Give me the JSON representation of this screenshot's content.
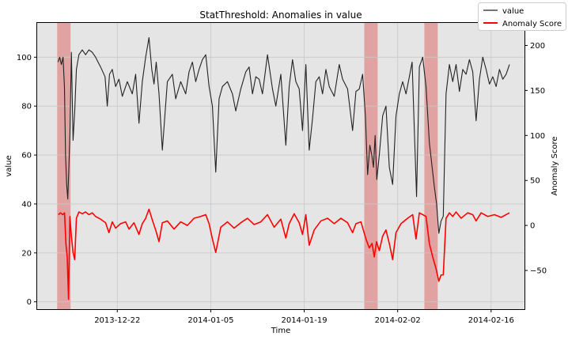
{
  "chart_data": {
    "type": "line",
    "title": "StatThreshold: Anomalies in value",
    "xlabel": "Time",
    "ylabel": "value",
    "ylabel_right": "Anomaly Score",
    "x_range": [
      "2013-12-10",
      "2014-02-21"
    ],
    "x_ticks": [
      "2013-12-22",
      "2014-01-05",
      "2014-01-19",
      "2014-02-02",
      "2014-02-16"
    ],
    "ylim": [
      -3,
      114
    ],
    "yticks": [
      0,
      20,
      40,
      60,
      80,
      100
    ],
    "ylim_right": [
      -93,
      225
    ],
    "yticks_right": [
      -50,
      0,
      50,
      100,
      150,
      200
    ],
    "grid": true,
    "legend_position": "top-right",
    "anomaly_color": "#d9534f",
    "anomaly_windows": [
      [
        "2013-12-13",
        "2013-12-15"
      ],
      [
        "2014-01-28",
        "2014-01-30"
      ],
      [
        "2014-02-06",
        "2014-02-08"
      ]
    ],
    "series": [
      {
        "name": "value",
        "color": "#222222",
        "axis": "left",
        "points": [
          [
            "2013-12-13",
            98
          ],
          [
            "2013-12-13",
            100
          ],
          [
            "2013-12-13",
            97
          ],
          [
            "2013-12-13",
            100
          ],
          [
            "2013-12-14",
            88
          ],
          [
            "2013-12-14",
            60
          ],
          [
            "2013-12-14",
            48
          ],
          [
            "2013-12-14",
            42
          ],
          [
            "2013-12-14",
            55
          ],
          [
            "2013-12-14",
            70
          ],
          [
            "2013-12-15",
            102
          ],
          [
            "2013-12-15",
            66
          ],
          [
            "2013-12-15",
            78
          ],
          [
            "2013-12-15",
            95
          ],
          [
            "2013-12-16",
            101
          ],
          [
            "2013-12-16",
            103
          ],
          [
            "2013-12-17",
            101
          ],
          [
            "2013-12-17",
            103
          ],
          [
            "2013-12-18",
            102
          ],
          [
            "2013-12-18",
            100
          ],
          [
            "2013-12-19",
            96
          ],
          [
            "2013-12-20",
            92
          ],
          [
            "2013-12-20",
            80
          ],
          [
            "2013-12-20",
            93
          ],
          [
            "2013-12-21",
            95
          ],
          [
            "2013-12-21",
            88
          ],
          [
            "2013-12-22",
            91
          ],
          [
            "2013-12-22",
            84
          ],
          [
            "2013-12-23",
            90
          ],
          [
            "2013-12-24",
            85
          ],
          [
            "2013-12-24",
            93
          ],
          [
            "2013-12-25",
            73
          ],
          [
            "2013-12-25",
            90
          ],
          [
            "2013-12-26",
            100
          ],
          [
            "2013-12-26",
            108
          ],
          [
            "2013-12-27",
            95
          ],
          [
            "2013-12-27",
            89
          ],
          [
            "2013-12-27",
            98
          ],
          [
            "2013-12-28",
            85
          ],
          [
            "2013-12-28",
            62
          ],
          [
            "2013-12-29",
            90
          ],
          [
            "2013-12-30",
            93
          ],
          [
            "2013-12-30",
            83
          ],
          [
            "2013-12-31",
            90
          ],
          [
            "2014-01-01",
            85
          ],
          [
            "2014-01-01",
            94
          ],
          [
            "2014-01-02",
            98
          ],
          [
            "2014-01-02",
            90
          ],
          [
            "2014-01-03",
            95
          ],
          [
            "2014-01-03",
            99
          ],
          [
            "2014-01-04",
            101
          ],
          [
            "2014-01-04",
            88
          ],
          [
            "2014-01-05",
            80
          ],
          [
            "2014-01-05",
            53
          ],
          [
            "2014-01-06",
            83
          ],
          [
            "2014-01-06",
            88
          ],
          [
            "2014-01-07",
            90
          ],
          [
            "2014-01-08",
            85
          ],
          [
            "2014-01-08",
            78
          ],
          [
            "2014-01-09",
            87
          ],
          [
            "2014-01-10",
            94
          ],
          [
            "2014-01-10",
            96
          ],
          [
            "2014-01-11",
            85
          ],
          [
            "2014-01-11",
            92
          ],
          [
            "2014-01-12",
            91
          ],
          [
            "2014-01-12",
            85
          ],
          [
            "2014-01-13",
            101
          ],
          [
            "2014-01-14",
            87
          ],
          [
            "2014-01-14",
            80
          ],
          [
            "2014-01-15",
            93
          ],
          [
            "2014-01-16",
            64
          ],
          [
            "2014-01-16",
            88
          ],
          [
            "2014-01-17",
            99
          ],
          [
            "2014-01-17",
            90
          ],
          [
            "2014-01-18",
            87
          ],
          [
            "2014-01-18",
            70
          ],
          [
            "2014-01-19",
            97
          ],
          [
            "2014-01-19",
            62
          ],
          [
            "2014-01-20",
            75
          ],
          [
            "2014-01-20",
            90
          ],
          [
            "2014-01-21",
            92
          ],
          [
            "2014-01-21",
            85
          ],
          [
            "2014-01-22",
            95
          ],
          [
            "2014-01-22",
            88
          ],
          [
            "2014-01-23",
            84
          ],
          [
            "2014-01-24",
            97
          ],
          [
            "2014-01-24",
            91
          ],
          [
            "2014-01-25",
            87
          ],
          [
            "2014-01-26",
            70
          ],
          [
            "2014-01-26",
            86
          ],
          [
            "2014-01-27",
            87
          ],
          [
            "2014-01-27",
            93
          ],
          [
            "2014-01-28",
            76
          ],
          [
            "2014-01-28",
            52
          ],
          [
            "2014-01-28",
            64
          ],
          [
            "2014-01-29",
            60
          ],
          [
            "2014-01-29",
            55
          ],
          [
            "2014-01-29",
            68
          ],
          [
            "2014-01-29",
            50
          ],
          [
            "2014-01-30",
            60
          ],
          [
            "2014-01-30",
            76
          ],
          [
            "2014-01-31",
            80
          ],
          [
            "2014-01-31",
            55
          ],
          [
            "2014-02-01",
            48
          ],
          [
            "2014-02-01",
            76
          ],
          [
            "2014-02-02",
            85
          ],
          [
            "2014-02-02",
            90
          ],
          [
            "2014-02-03",
            85
          ],
          [
            "2014-02-03",
            92
          ],
          [
            "2014-02-04",
            98
          ],
          [
            "2014-02-04",
            70
          ],
          [
            "2014-02-04",
            43
          ],
          [
            "2014-02-05",
            96
          ],
          [
            "2014-02-05",
            100
          ],
          [
            "2014-02-06",
            88
          ],
          [
            "2014-02-06",
            65
          ],
          [
            "2014-02-07",
            55
          ],
          [
            "2014-02-07",
            47
          ],
          [
            "2014-02-07",
            40
          ],
          [
            "2014-02-08",
            28
          ],
          [
            "2014-02-08",
            33
          ],
          [
            "2014-02-08",
            35
          ],
          [
            "2014-02-09",
            85
          ],
          [
            "2014-02-09",
            97
          ],
          [
            "2014-02-10",
            90
          ],
          [
            "2014-02-10",
            97
          ],
          [
            "2014-02-11",
            86
          ],
          [
            "2014-02-11",
            95
          ],
          [
            "2014-02-12",
            93
          ],
          [
            "2014-02-12",
            99
          ],
          [
            "2014-02-13",
            94
          ],
          [
            "2014-02-13",
            74
          ],
          [
            "2014-02-14",
            91
          ],
          [
            "2014-02-14",
            100
          ],
          [
            "2014-02-15",
            95
          ],
          [
            "2014-02-15",
            89
          ],
          [
            "2014-02-16",
            92
          ],
          [
            "2014-02-16",
            88
          ],
          [
            "2014-02-17",
            95
          ],
          [
            "2014-02-17",
            91
          ],
          [
            "2014-02-18",
            93
          ],
          [
            "2014-02-18",
            97
          ]
        ]
      },
      {
        "name": "Anomaly Score",
        "color": "#ff0000",
        "axis": "right",
        "points": [
          [
            "2013-12-13",
            12
          ],
          [
            "2013-12-13",
            14
          ],
          [
            "2013-12-13",
            12
          ],
          [
            "2013-12-14",
            14
          ],
          [
            "2013-12-14",
            -20
          ],
          [
            "2013-12-14",
            -35
          ],
          [
            "2013-12-14",
            -82
          ],
          [
            "2013-12-14",
            10
          ],
          [
            "2013-12-15",
            -12
          ],
          [
            "2013-12-15",
            -30
          ],
          [
            "2013-12-15",
            -38
          ],
          [
            "2013-12-15",
            8
          ],
          [
            "2013-12-16",
            15
          ],
          [
            "2013-12-16",
            13
          ],
          [
            "2013-12-17",
            15
          ],
          [
            "2013-12-17",
            12
          ],
          [
            "2013-12-18",
            14
          ],
          [
            "2013-12-18",
            10
          ],
          [
            "2013-12-19",
            7
          ],
          [
            "2013-12-20",
            3
          ],
          [
            "2013-12-20",
            -8
          ],
          [
            "2013-12-21",
            4
          ],
          [
            "2013-12-21",
            -3
          ],
          [
            "2013-12-22",
            2
          ],
          [
            "2013-12-23",
            4
          ],
          [
            "2013-12-23",
            -4
          ],
          [
            "2013-12-24",
            3
          ],
          [
            "2013-12-25",
            -10
          ],
          [
            "2013-12-25",
            2
          ],
          [
            "2013-12-26",
            8
          ],
          [
            "2013-12-26",
            18
          ],
          [
            "2013-12-27",
            6
          ],
          [
            "2013-12-27",
            -5
          ],
          [
            "2013-12-28",
            -18
          ],
          [
            "2013-12-28",
            3
          ],
          [
            "2013-12-29",
            5
          ],
          [
            "2013-12-30",
            -4
          ],
          [
            "2013-12-31",
            4
          ],
          [
            "2014-01-01",
            0
          ],
          [
            "2014-01-02",
            8
          ],
          [
            "2014-01-03",
            10
          ],
          [
            "2014-01-04",
            12
          ],
          [
            "2014-01-04",
            2
          ],
          [
            "2014-01-05",
            -15
          ],
          [
            "2014-01-05",
            -30
          ],
          [
            "2014-01-06",
            -2
          ],
          [
            "2014-01-07",
            4
          ],
          [
            "2014-01-08",
            -3
          ],
          [
            "2014-01-09",
            3
          ],
          [
            "2014-01-10",
            8
          ],
          [
            "2014-01-11",
            1
          ],
          [
            "2014-01-12",
            4
          ],
          [
            "2014-01-13",
            12
          ],
          [
            "2014-01-14",
            -2
          ],
          [
            "2014-01-15",
            7
          ],
          [
            "2014-01-16",
            -14
          ],
          [
            "2014-01-16",
            2
          ],
          [
            "2014-01-17",
            13
          ],
          [
            "2014-01-18",
            3
          ],
          [
            "2014-01-18",
            -10
          ],
          [
            "2014-01-19",
            12
          ],
          [
            "2014-01-19",
            -22
          ],
          [
            "2014-01-20",
            -5
          ],
          [
            "2014-01-21",
            5
          ],
          [
            "2014-01-22",
            8
          ],
          [
            "2014-01-23",
            2
          ],
          [
            "2014-01-24",
            8
          ],
          [
            "2014-01-25",
            3
          ],
          [
            "2014-01-26",
            -8
          ],
          [
            "2014-01-26",
            2
          ],
          [
            "2014-01-27",
            4
          ],
          [
            "2014-01-28",
            -15
          ],
          [
            "2014-01-28",
            -25
          ],
          [
            "2014-01-29",
            -20
          ],
          [
            "2014-01-29",
            -35
          ],
          [
            "2014-01-29",
            -18
          ],
          [
            "2014-01-30",
            -28
          ],
          [
            "2014-01-30",
            -12
          ],
          [
            "2014-01-31",
            -5
          ],
          [
            "2014-01-31",
            -20
          ],
          [
            "2014-02-01",
            -38
          ],
          [
            "2014-02-01",
            -8
          ],
          [
            "2014-02-02",
            2
          ],
          [
            "2014-02-03",
            8
          ],
          [
            "2014-02-04",
            12
          ],
          [
            "2014-02-04",
            -15
          ],
          [
            "2014-02-05",
            14
          ],
          [
            "2014-02-05",
            12
          ],
          [
            "2014-02-06",
            10
          ],
          [
            "2014-02-06",
            -20
          ],
          [
            "2014-02-07",
            -35
          ],
          [
            "2014-02-07",
            -48
          ],
          [
            "2014-02-08",
            -62
          ],
          [
            "2014-02-08",
            -55
          ],
          [
            "2014-02-08",
            -55
          ],
          [
            "2014-02-09",
            8
          ],
          [
            "2014-02-09",
            14
          ],
          [
            "2014-02-10",
            10
          ],
          [
            "2014-02-10",
            15
          ],
          [
            "2014-02-11",
            8
          ],
          [
            "2014-02-12",
            14
          ],
          [
            "2014-02-13",
            12
          ],
          [
            "2014-02-13",
            5
          ],
          [
            "2014-02-14",
            14
          ],
          [
            "2014-02-15",
            10
          ],
          [
            "2014-02-16",
            12
          ],
          [
            "2014-02-17",
            9
          ],
          [
            "2014-02-18",
            12
          ],
          [
            "2014-02-18",
            14
          ]
        ]
      }
    ]
  }
}
